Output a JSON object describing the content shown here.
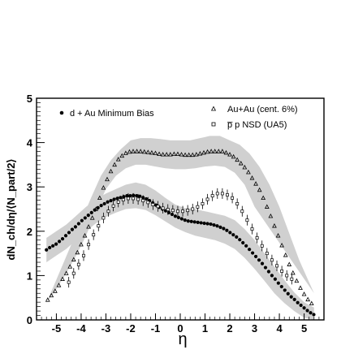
{
  "chart_data": {
    "type": "scatter",
    "title": "",
    "xlabel": "η",
    "ylabel": "dN_ch/dη/⟨N_part/2⟩",
    "xlim": [
      -5.8,
      5.8
    ],
    "ylim": [
      0,
      5
    ],
    "x_ticks": [
      -5,
      -4,
      -3,
      -2,
      -1,
      0,
      1,
      2,
      3,
      4,
      5
    ],
    "y_ticks": [
      0,
      1,
      2,
      3,
      4,
      5
    ],
    "grid": false,
    "legend": [
      {
        "label": "d + Au Minimum Bias",
        "marker": "filled-circle",
        "placement": "top-left"
      },
      {
        "label": "Au+Au (cent. 6%)",
        "marker": "open-triangle",
        "placement": "top-right"
      },
      {
        "label": "p̅ p NSD (UA5)",
        "marker": "open-square",
        "placement": "top-right"
      }
    ],
    "colors": {
      "markers": "#000000",
      "band": "#d0d0d0"
    },
    "bands": [
      {
        "upper": [
          [
            -3.6,
            2.75
          ],
          [
            -3.2,
            3.25
          ],
          [
            -2.8,
            3.6
          ],
          [
            -2.4,
            3.85
          ],
          [
            -2,
            4.05
          ],
          [
            -1.6,
            4.1
          ],
          [
            -1.2,
            4.1
          ],
          [
            -0.8,
            4.08
          ],
          [
            -0.4,
            4.05
          ],
          [
            0,
            4.05
          ],
          [
            0.4,
            4.05
          ],
          [
            0.8,
            4.1
          ],
          [
            1.2,
            4.15
          ],
          [
            1.6,
            4.15
          ],
          [
            2,
            4.05
          ],
          [
            2.4,
            3.95
          ],
          [
            2.8,
            3.75
          ],
          [
            3.2,
            3.45
          ],
          [
            3.6,
            3.05
          ],
          [
            4,
            2.55
          ],
          [
            4.4,
            1.95
          ],
          [
            4.8,
            1.35
          ],
          [
            5.2,
            0.85
          ],
          [
            5.4,
            0.6
          ]
        ],
        "lower": [
          [
            -5.4,
            0.38
          ],
          [
            -5,
            0.7
          ],
          [
            -4.6,
            1.05
          ],
          [
            -4.2,
            1.45
          ],
          [
            -3.8,
            1.9
          ],
          [
            -3.4,
            2.45
          ],
          [
            -3,
            2.95
          ],
          [
            -2.6,
            3.25
          ],
          [
            -2.2,
            3.42
          ],
          [
            -1.8,
            3.5
          ],
          [
            -1.4,
            3.5
          ],
          [
            -1,
            3.46
          ],
          [
            -0.6,
            3.42
          ],
          [
            -0.2,
            3.4
          ],
          [
            0.2,
            3.4
          ],
          [
            0.6,
            3.42
          ],
          [
            1,
            3.46
          ],
          [
            1.4,
            3.48
          ],
          [
            1.8,
            3.45
          ],
          [
            2.2,
            3.32
          ],
          [
            2.6,
            3.05
          ],
          [
            3,
            2.55
          ]
        ]
      },
      {
        "upper": [
          [
            -5.4,
            1.85
          ],
          [
            -5,
            2.0
          ],
          [
            -4.6,
            2.15
          ],
          [
            -4.2,
            2.35
          ],
          [
            -3.8,
            2.55
          ],
          [
            -3.4,
            2.72
          ],
          [
            -3,
            2.85
          ],
          [
            -2.6,
            2.95
          ],
          [
            -2.2,
            3.05
          ],
          [
            -1.8,
            3.1
          ],
          [
            -1.4,
            3.05
          ],
          [
            -1,
            2.92
          ],
          [
            -0.6,
            2.75
          ],
          [
            -0.2,
            2.6
          ],
          [
            0.2,
            2.52
          ],
          [
            0.6,
            2.5
          ],
          [
            1,
            2.45
          ],
          [
            1.4,
            2.4
          ],
          [
            1.8,
            2.35
          ],
          [
            2.2,
            2.25
          ],
          [
            2.6,
            2.05
          ],
          [
            3,
            1.8
          ],
          [
            3.4,
            1.5
          ],
          [
            3.8,
            1.2
          ],
          [
            4.2,
            0.9
          ],
          [
            4.6,
            0.62
          ],
          [
            5,
            0.4
          ],
          [
            5.4,
            0.28
          ]
        ],
        "lower": [
          [
            -5.4,
            1.3
          ],
          [
            -5,
            1.45
          ],
          [
            -4.6,
            1.6
          ],
          [
            -4.2,
            1.8
          ],
          [
            -3.8,
            2.0
          ],
          [
            -3.4,
            2.18
          ],
          [
            -3,
            2.32
          ],
          [
            -2.6,
            2.42
          ],
          [
            -2.2,
            2.5
          ],
          [
            -1.8,
            2.52
          ],
          [
            -1.4,
            2.48
          ],
          [
            -1,
            2.36
          ],
          [
            -0.6,
            2.22
          ],
          [
            -0.2,
            2.08
          ],
          [
            0.2,
            1.98
          ],
          [
            0.6,
            1.9
          ],
          [
            1,
            1.85
          ],
          [
            1.4,
            1.8
          ],
          [
            1.8,
            1.72
          ],
          [
            2.2,
            1.6
          ],
          [
            2.6,
            1.4
          ],
          [
            3,
            1.15
          ],
          [
            3.4,
            0.88
          ],
          [
            3.8,
            0.6
          ],
          [
            4.2,
            0.38
          ],
          [
            4.6,
            0.2
          ],
          [
            5,
            0.05
          ],
          [
            5.4,
            0.0
          ]
        ]
      }
    ],
    "series": [
      {
        "marker": "filled-circle",
        "x": [
          -5.4,
          -5.27,
          -5.14,
          -5.01,
          -4.88,
          -4.75,
          -4.62,
          -4.49,
          -4.36,
          -4.23,
          -4.1,
          -3.97,
          -3.84,
          -3.71,
          -3.58,
          -3.45,
          -3.32,
          -3.19,
          -3.06,
          -2.93,
          -2.8,
          -2.67,
          -2.54,
          -2.41,
          -2.28,
          -2.15,
          -2.02,
          -1.89,
          -1.76,
          -1.63,
          -1.5,
          -1.37,
          -1.24,
          -1.11,
          -0.98,
          -0.85,
          -0.72,
          -0.59,
          -0.46,
          -0.33,
          -0.2,
          -0.07,
          0.06,
          0.19,
          0.32,
          0.45,
          0.58,
          0.71,
          0.84,
          0.97,
          1.1,
          1.23,
          1.36,
          1.49,
          1.62,
          1.75,
          1.88,
          2.01,
          2.14,
          2.27,
          2.4,
          2.53,
          2.66,
          2.79,
          2.92,
          3.05,
          3.18,
          3.31,
          3.44,
          3.57,
          3.7,
          3.83,
          3.96,
          4.09,
          4.22,
          4.35,
          4.48,
          4.61,
          4.74,
          4.87,
          5.0,
          5.13,
          5.26,
          5.39
        ],
        "y": [
          1.58,
          1.63,
          1.67,
          1.71,
          1.77,
          1.83,
          1.9,
          1.97,
          2.04,
          2.1,
          2.17,
          2.24,
          2.3,
          2.36,
          2.42,
          2.48,
          2.53,
          2.58,
          2.62,
          2.66,
          2.69,
          2.72,
          2.74,
          2.76,
          2.78,
          2.8,
          2.8,
          2.81,
          2.8,
          2.79,
          2.76,
          2.73,
          2.69,
          2.64,
          2.59,
          2.54,
          2.5,
          2.46,
          2.42,
          2.38,
          2.34,
          2.31,
          2.28,
          2.25,
          2.23,
          2.22,
          2.21,
          2.2,
          2.19,
          2.18,
          2.17,
          2.16,
          2.14,
          2.12,
          2.09,
          2.06,
          2.02,
          1.97,
          1.92,
          1.87,
          1.81,
          1.74,
          1.67,
          1.59,
          1.51,
          1.43,
          1.35,
          1.27,
          1.18,
          1.09,
          1.0,
          0.92,
          0.83,
          0.75,
          0.67,
          0.59,
          0.52,
          0.46,
          0.39,
          0.33,
          0.27,
          0.21,
          0.16,
          0.12
        ]
      },
      {
        "marker": "open-triangle",
        "x": [
          -5.35,
          -5.2,
          -5.05,
          -4.9,
          -4.75,
          -4.6,
          -4.45,
          -4.3,
          -4.15,
          -4.0,
          -3.85,
          -3.7,
          -3.55,
          -3.4,
          -3.25,
          -3.1,
          -2.95,
          -2.8,
          -2.65,
          -2.5,
          -2.35,
          -2.2,
          -2.05,
          -1.9,
          -1.75,
          -1.6,
          -1.45,
          -1.3,
          -1.15,
          -1.0,
          -0.85,
          -0.7,
          -0.55,
          -0.4,
          -0.25,
          -0.1,
          0.05,
          0.2,
          0.35,
          0.5,
          0.65,
          0.8,
          0.95,
          1.1,
          1.25,
          1.4,
          1.55,
          1.7,
          1.85,
          2.0,
          2.15,
          2.3,
          2.45,
          2.6,
          2.75,
          2.9,
          3.05,
          3.2,
          3.35,
          3.5,
          3.65,
          3.8,
          3.95,
          4.1,
          4.25,
          4.4,
          4.55,
          4.7,
          4.85,
          5.0,
          5.15,
          5.3
        ],
        "y": [
          0.45,
          0.55,
          0.65,
          0.78,
          0.92,
          1.05,
          1.2,
          1.36,
          1.52,
          1.7,
          1.9,
          2.1,
          2.3,
          2.5,
          2.75,
          2.98,
          3.17,
          3.35,
          3.5,
          3.62,
          3.7,
          3.76,
          3.79,
          3.8,
          3.8,
          3.8,
          3.79,
          3.78,
          3.77,
          3.76,
          3.74,
          3.73,
          3.73,
          3.73,
          3.74,
          3.74,
          3.73,
          3.72,
          3.72,
          3.72,
          3.73,
          3.75,
          3.77,
          3.79,
          3.8,
          3.8,
          3.8,
          3.8,
          3.77,
          3.73,
          3.68,
          3.61,
          3.53,
          3.44,
          3.33,
          3.2,
          3.07,
          2.93,
          2.75,
          2.55,
          2.34,
          2.12,
          1.9,
          1.68,
          1.46,
          1.25,
          1.06,
          0.88,
          0.72,
          0.58,
          0.46,
          0.37
        ]
      },
      {
        "marker": "open-square",
        "x": [
          -4.5,
          -4.3,
          -4.1,
          -3.9,
          -3.7,
          -3.5,
          -3.3,
          -3.1,
          -2.9,
          -2.7,
          -2.5,
          -2.3,
          -2.1,
          -1.9,
          -1.7,
          -1.5,
          -1.3,
          -1.1,
          -0.9,
          -0.7,
          -0.5,
          -0.3,
          -0.1,
          0.1,
          0.3,
          0.5,
          0.7,
          0.9,
          1.1,
          1.3,
          1.5,
          1.7,
          1.9,
          2.1,
          2.3,
          2.5,
          2.7,
          2.9,
          3.1,
          3.3,
          3.5,
          3.7,
          3.9,
          4.1,
          4.3,
          4.5
        ],
        "y": [
          0.85,
          1.05,
          1.25,
          1.45,
          1.7,
          1.92,
          2.12,
          2.3,
          2.45,
          2.57,
          2.66,
          2.71,
          2.74,
          2.74,
          2.72,
          2.69,
          2.65,
          2.6,
          2.56,
          2.52,
          2.49,
          2.47,
          2.45,
          2.45,
          2.47,
          2.5,
          2.55,
          2.62,
          2.72,
          2.8,
          2.85,
          2.85,
          2.82,
          2.75,
          2.62,
          2.45,
          2.25,
          2.05,
          1.85,
          1.67,
          1.5,
          1.35,
          1.22,
          1.1,
          1.0,
          0.92
        ],
        "err": 0.12
      }
    ]
  }
}
